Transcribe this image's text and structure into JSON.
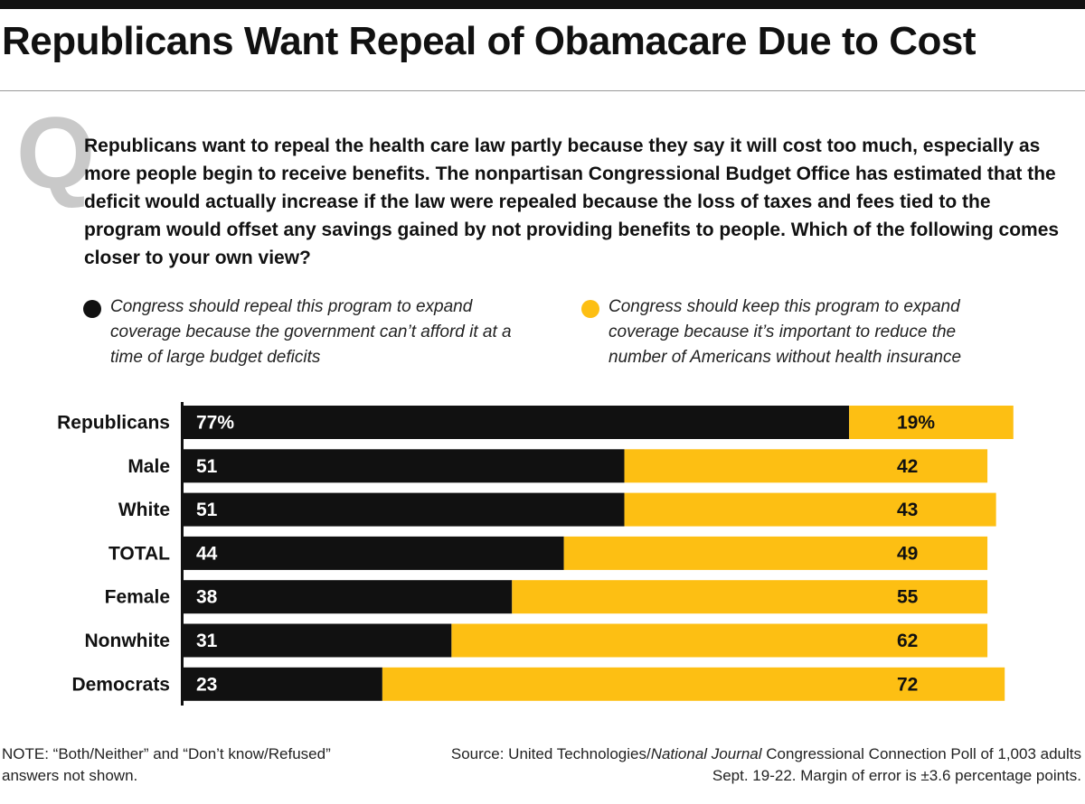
{
  "title": "Republicans Want Repeal of Obamacare Due to Cost",
  "question_mark": "Q",
  "question": "Republicans want to repeal the health care law partly because they say it will cost too much, especially as more people begin to receive benefits. The nonpartisan Congressional Budget Office has estimated that the deficit would actually increase if the law were repealed because the loss of taxes and fees tied to the program would offset any savings gained by not providing benefits to people. Which of the following comes closer to your own view?",
  "legend": {
    "repeal": "Congress should repeal this program to expand coverage because the government can’t afford it at a time of large budget deficits",
    "keep": "Congress should keep this program to expand coverage because it’s important to reduce the number of Americans without health insurance"
  },
  "colors": {
    "repeal": "#111111",
    "keep": "#fdbf13"
  },
  "chart_data": {
    "type": "bar",
    "orientation": "horizontal",
    "stacked": true,
    "categories": [
      "Republicans",
      "Male",
      "White",
      "TOTAL",
      "Female",
      "Nonwhite",
      "Democrats"
    ],
    "series": [
      {
        "key": "repeal",
        "values": [
          77,
          51,
          51,
          44,
          38,
          31,
          23
        ],
        "labels": [
          "77%",
          "51",
          "51",
          "44",
          "38",
          "31",
          "23"
        ]
      },
      {
        "key": "keep",
        "values": [
          19,
          42,
          43,
          49,
          55,
          62,
          72
        ],
        "labels": [
          "19%",
          "42",
          "43",
          "49",
          "55",
          "62",
          "72"
        ]
      }
    ],
    "xlim": [
      0,
      100
    ],
    "grid": false,
    "legend_position": "top"
  },
  "note": "NOTE: “Both/Neither” and “Don’t know/Refused” answers not shown.",
  "source": {
    "prefix": "Source: United Technologies/",
    "publication": "National Journal",
    "suffix": " Congressional Connection Poll of 1,003 adults Sept. 19-22. Margin of error is ±3.6 percentage points."
  }
}
